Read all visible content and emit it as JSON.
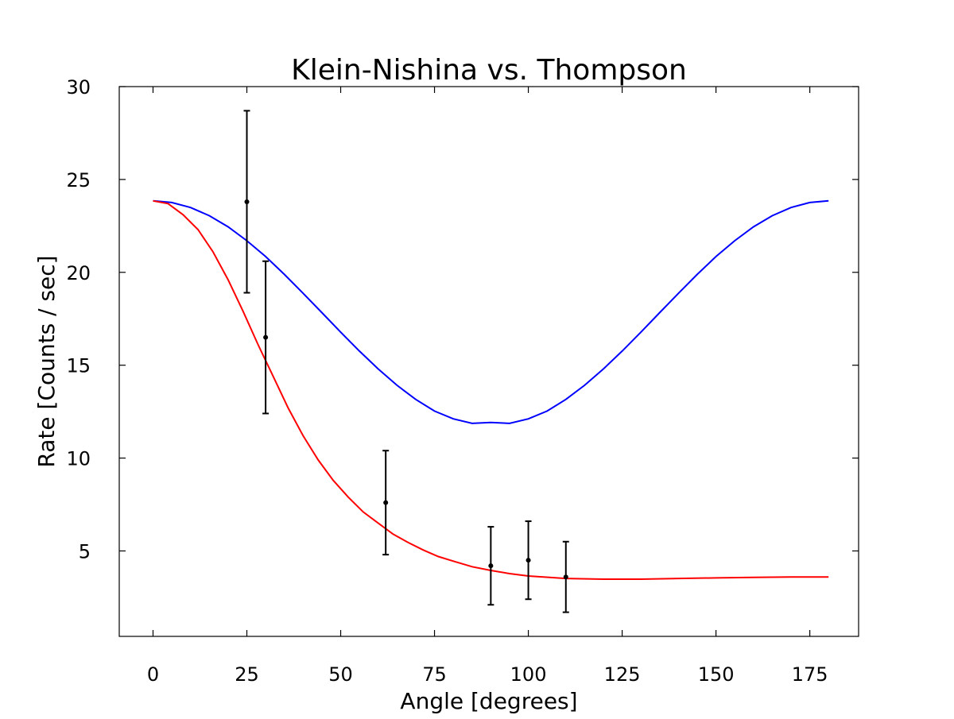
{
  "chart_data": {
    "type": "line",
    "title": "Klein-Nishina vs. Thompson",
    "xlabel": "Angle [degrees]",
    "ylabel": "Rate [Counts / sec]",
    "xlim": [
      -9,
      188
    ],
    "ylim": [
      0.4,
      30
    ],
    "xticks": [
      0,
      25,
      50,
      75,
      100,
      125,
      150,
      175
    ],
    "yticks": [
      5,
      10,
      15,
      20,
      25,
      30
    ],
    "grid": false,
    "legend": "none",
    "series": [
      {
        "kind": "curve",
        "color": "#0000ff",
        "x": [
          0,
          5,
          10,
          15,
          20,
          25,
          30,
          35,
          40,
          45,
          50,
          55,
          60,
          65,
          70,
          75,
          80,
          85,
          90,
          95,
          100,
          105,
          110,
          115,
          120,
          125,
          130,
          135,
          140,
          145,
          150,
          155,
          160,
          165,
          170,
          175,
          180
        ],
        "y": [
          23.85,
          23.76,
          23.49,
          23.05,
          22.45,
          21.7,
          20.85,
          19.89,
          18.87,
          17.83,
          16.78,
          15.76,
          14.8,
          13.92,
          13.16,
          12.53,
          12.11,
          11.87,
          11.92,
          11.87,
          12.11,
          12.53,
          13.16,
          13.92,
          14.8,
          15.76,
          16.78,
          17.83,
          18.87,
          19.89,
          20.85,
          21.7,
          22.45,
          23.05,
          23.49,
          23.76,
          23.85
        ]
      },
      {
        "kind": "curve",
        "color": "#ff0000",
        "x": [
          0,
          4,
          8,
          12,
          16,
          20,
          24,
          28,
          32,
          36,
          40,
          44,
          48,
          52,
          56,
          60,
          64,
          68,
          72,
          76,
          80,
          85,
          90,
          95,
          100,
          110,
          120,
          130,
          140,
          150,
          160,
          170,
          180
        ],
        "y": [
          23.85,
          23.7,
          23.1,
          22.3,
          21.1,
          19.6,
          17.9,
          16.1,
          14.4,
          12.7,
          11.2,
          9.9,
          8.8,
          7.9,
          7.1,
          6.5,
          5.9,
          5.45,
          5.05,
          4.7,
          4.45,
          4.15,
          3.95,
          3.78,
          3.65,
          3.52,
          3.48,
          3.48,
          3.52,
          3.55,
          3.58,
          3.6,
          3.6
        ]
      },
      {
        "kind": "errorbar",
        "color": "#000000",
        "x": [
          25,
          30,
          62,
          90,
          100,
          110
        ],
        "y": [
          23.8,
          16.5,
          7.6,
          4.2,
          4.5,
          3.6
        ],
        "yerr": [
          4.9,
          4.1,
          2.8,
          2.1,
          2.1,
          1.9
        ]
      }
    ]
  }
}
